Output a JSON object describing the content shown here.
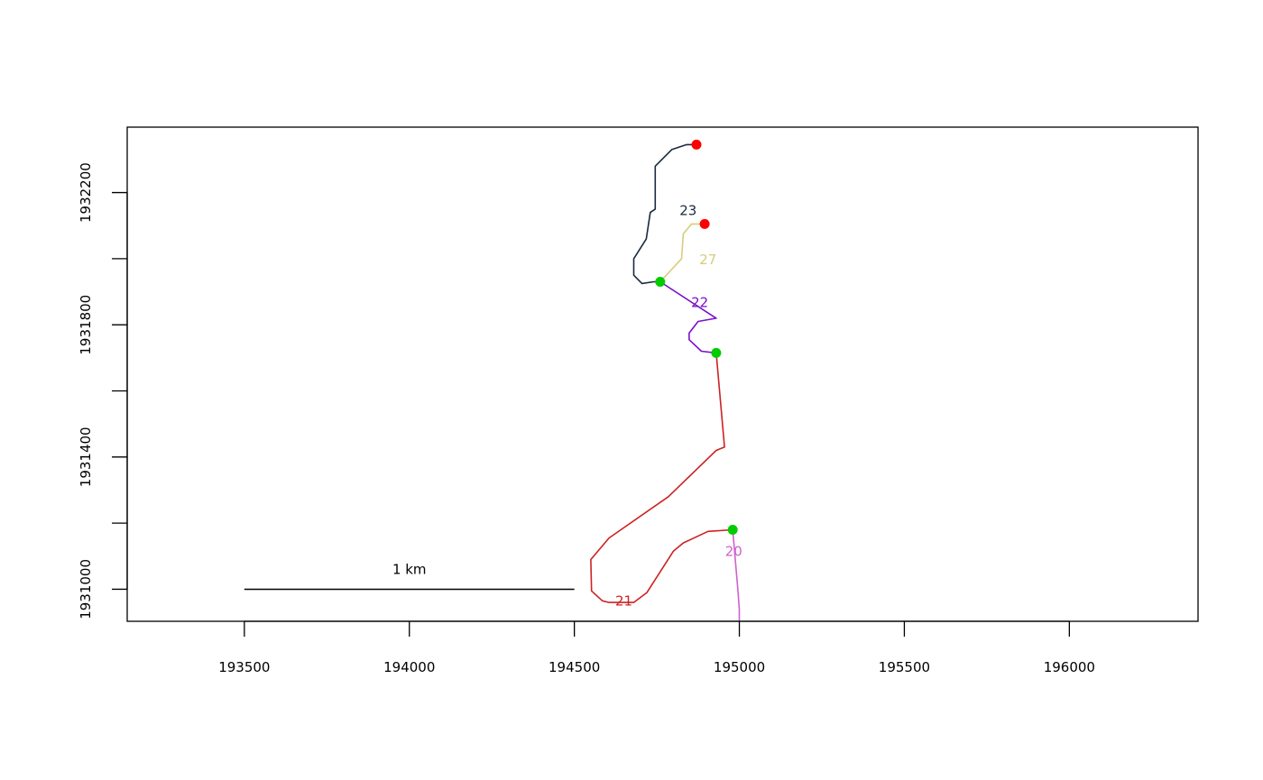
{
  "chart_data": {
    "type": "line",
    "title": "",
    "xlabel": "",
    "ylabel": "",
    "xlim": [
      193145,
      196390
    ],
    "ylim": [
      1930903,
      1932398
    ],
    "grid": false,
    "x_ticks": [
      193500,
      194000,
      194500,
      195000,
      195500,
      196000
    ],
    "x_tick_labels": [
      "193500",
      "194000",
      "194500",
      "195000",
      "195500",
      "196000"
    ],
    "y_ticks": [
      1931000,
      1931200,
      1931400,
      1931600,
      1931800,
      1932000,
      1932200
    ],
    "y_tick_labels": [
      "1931000",
      "",
      "1931400",
      "",
      "1931800",
      "",
      "1932200"
    ],
    "scale_bar": {
      "x_start": 193500,
      "x_end": 194500,
      "y": 1931000,
      "label": "1 km"
    },
    "series": [
      {
        "name": "23",
        "color": "#1a2a3f",
        "points": [
          [
            194870,
            1932345
          ],
          [
            194840,
            1932345
          ],
          [
            194795,
            1932330
          ],
          [
            194745,
            1932280
          ],
          [
            194745,
            1932150
          ],
          [
            194730,
            1932140
          ],
          [
            194718,
            1932060
          ],
          [
            194680,
            1932000
          ],
          [
            194680,
            1931950
          ],
          [
            194705,
            1931925
          ],
          [
            194740,
            1931930
          ],
          [
            194760,
            1931930
          ]
        ],
        "label_position": [
          194845,
          1932145
        ]
      },
      {
        "name": "27",
        "color": "#d8cc7a",
        "points": [
          [
            194895,
            1932105
          ],
          [
            194855,
            1932105
          ],
          [
            194830,
            1932075
          ],
          [
            194825,
            1932000
          ],
          [
            194760,
            1931930
          ]
        ],
        "label_position": [
          194905,
          1931997
        ]
      },
      {
        "name": "22",
        "color": "#7a10c8",
        "points": [
          [
            194760,
            1931930
          ],
          [
            194930,
            1931820
          ],
          [
            194875,
            1931810
          ],
          [
            194848,
            1931775
          ],
          [
            194848,
            1931755
          ],
          [
            194885,
            1931720
          ],
          [
            194930,
            1931715
          ]
        ],
        "label_position": [
          194880,
          1931868
        ]
      },
      {
        "name": "21",
        "color": "#cc2222",
        "points": [
          [
            194930,
            1931715
          ],
          [
            194955,
            1931430
          ],
          [
            194930,
            1931420
          ],
          [
            194785,
            1931280
          ],
          [
            194605,
            1931155
          ],
          [
            194550,
            1931090
          ],
          [
            194552,
            1930995
          ],
          [
            194585,
            1930965
          ],
          [
            194605,
            1930960
          ],
          [
            194680,
            1930960
          ],
          [
            194720,
            1930990
          ],
          [
            194800,
            1931115
          ],
          [
            194830,
            1931140
          ],
          [
            194905,
            1931175
          ],
          [
            194980,
            1931180
          ]
        ],
        "label_position": [
          194650,
          1930965
        ]
      },
      {
        "name": "20",
        "color": "#d060d0",
        "points": [
          [
            194980,
            1931180
          ],
          [
            194995,
            1931005
          ],
          [
            195000,
            1930940
          ],
          [
            195000,
            1930903
          ]
        ],
        "label_position": [
          194983,
          1931115
        ]
      }
    ],
    "markers": [
      {
        "x": 194870,
        "y": 1932345,
        "color": "#ff0000"
      },
      {
        "x": 194895,
        "y": 1932105,
        "color": "#ff0000"
      },
      {
        "x": 194760,
        "y": 1931930,
        "color": "#00cc00"
      },
      {
        "x": 194930,
        "y": 1931715,
        "color": "#00cc00"
      },
      {
        "x": 194980,
        "y": 1931180,
        "color": "#00cc00"
      }
    ]
  }
}
